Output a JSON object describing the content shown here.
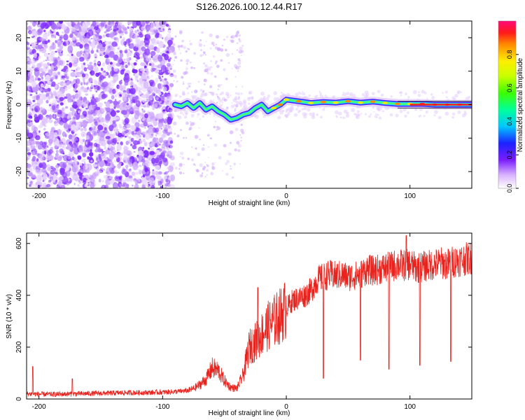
{
  "title": "S126.2026.100.12.44.R17",
  "chart_data": [
    {
      "type": "heatmap",
      "name": "spectrogram",
      "xlabel": "Height of straight line (km)",
      "ylabel": "Frequency (Hz)",
      "xlim": [
        -210,
        150
      ],
      "ylim": [
        -25,
        25
      ],
      "xticks": [
        -200,
        -100,
        0,
        100
      ],
      "xtick_labels": [
        "-200",
        "-100",
        "0",
        "100"
      ],
      "yticks": [
        20,
        10,
        0,
        -10,
        -20
      ],
      "ytick_labels": [
        "20",
        "10",
        "0",
        "-10",
        "-20"
      ],
      "ridge": {
        "x": [
          -90,
          -85,
          -80,
          -75,
          -70,
          -65,
          -60,
          -55,
          -50,
          -45,
          -40,
          -35,
          -30,
          -25,
          -20,
          -15,
          -10,
          -5,
          0,
          10,
          20,
          30,
          40,
          50,
          60,
          70,
          80,
          90,
          100,
          110,
          120,
          130,
          140,
          150
        ],
        "freq": [
          0,
          -0.5,
          0.5,
          -1,
          0.5,
          -1.5,
          -0.5,
          -2,
          -3,
          -4.5,
          -4,
          -3,
          -2.5,
          -1,
          0,
          -2,
          -1,
          0,
          1.5,
          1,
          0.5,
          0.8,
          0.6,
          1,
          0.6,
          0.9,
          0.5,
          0.2,
          0.2,
          0.2,
          0,
          0,
          0,
          0
        ]
      },
      "colorbar": {
        "label": "Normalized spectral amplitude",
        "range": [
          0,
          1
        ],
        "ticks": [
          0.0,
          0.2,
          0.4,
          0.6,
          0.8
        ],
        "tick_labels": [
          "0.0",
          "0.2",
          "0.4",
          "0.6",
          "0.8"
        ]
      }
    },
    {
      "type": "line",
      "name": "snr",
      "xlabel": "Height of straight line (km)",
      "ylabel": "SNR (10 * v/v)",
      "xlim": [
        -210,
        150
      ],
      "ylim": [
        0,
        640
      ],
      "xticks": [
        -200,
        -100,
        0,
        100
      ],
      "xtick_labels": [
        "-200",
        "-100",
        "0",
        "100"
      ],
      "yticks": [
        0,
        200,
        400,
        600
      ],
      "ytick_labels": [
        "0",
        "200",
        "400",
        "600"
      ],
      "series": [
        {
          "name": "SNR",
          "color": "#e8221c",
          "x": [
            -210,
            -190,
            -170,
            -150,
            -130,
            -110,
            -100,
            -90,
            -80,
            -75,
            -70,
            -65,
            -60,
            -55,
            -50,
            -45,
            -40,
            -35,
            -30,
            -25,
            -20,
            -15,
            -10,
            -5,
            0,
            5,
            10,
            15,
            20,
            25,
            30,
            35,
            40,
            45,
            50,
            55,
            60,
            65,
            70,
            75,
            80,
            85,
            90,
            95,
            100,
            105,
            110,
            115,
            120,
            125,
            130,
            135,
            140,
            145,
            150
          ],
          "values": [
            20,
            18,
            20,
            22,
            24,
            25,
            26,
            28,
            32,
            40,
            55,
            75,
            120,
            110,
            70,
            45,
            40,
            90,
            200,
            220,
            250,
            280,
            300,
            320,
            350,
            380,
            390,
            400,
            420,
            460,
            470,
            480,
            475,
            480,
            470,
            475,
            480,
            500,
            495,
            500,
            505,
            510,
            520,
            515,
            520,
            505,
            510,
            515,
            520,
            525,
            520,
            530,
            535,
            540,
            545
          ]
        }
      ],
      "dips": [
        {
          "x": 30,
          "value": 80
        },
        {
          "x": 60,
          "value": 150
        },
        {
          "x": 83,
          "value": 115
        },
        {
          "x": 108,
          "value": 130
        },
        {
          "x": 133,
          "value": 145
        }
      ],
      "spikes": [
        {
          "x": -205,
          "value": 125
        },
        {
          "x": -173,
          "value": 78
        },
        {
          "x": -23,
          "value": 430
        },
        {
          "x": 97,
          "value": 630
        }
      ]
    }
  ]
}
